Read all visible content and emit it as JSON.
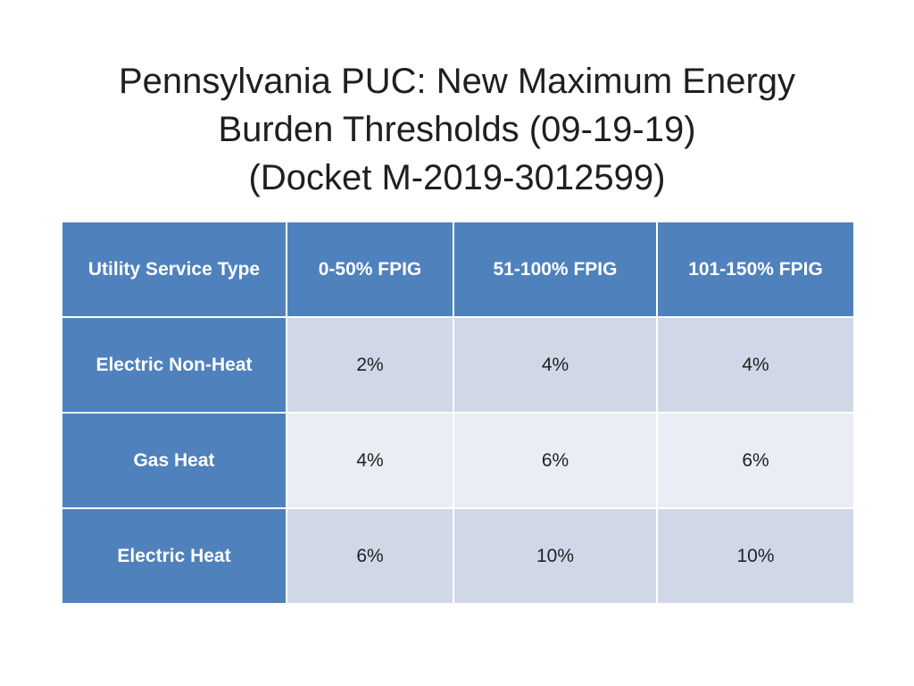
{
  "title": {
    "line1": "Pennsylvania PUC: New Maximum Energy",
    "line2": "Burden Thresholds (09-19-19)",
    "line3": "(Docket M-2019-3012599)"
  },
  "table": {
    "headers": [
      "Utility Service Type",
      "0-50% FPIG",
      "51-100% FPIG",
      "101-150% FPIG"
    ],
    "rows": [
      {
        "label": "Electric Non-Heat",
        "values": [
          "2%",
          "4%",
          "4%"
        ]
      },
      {
        "label": "Gas Heat",
        "values": [
          "4%",
          "6%",
          "6%"
        ]
      },
      {
        "label": "Electric Heat",
        "values": [
          "6%",
          "10%",
          "10%"
        ]
      }
    ]
  },
  "colors": {
    "header_bg": "#4f81bd",
    "row_odd_bg": "#d0d8e8",
    "row_even_bg": "#e9edf4"
  }
}
